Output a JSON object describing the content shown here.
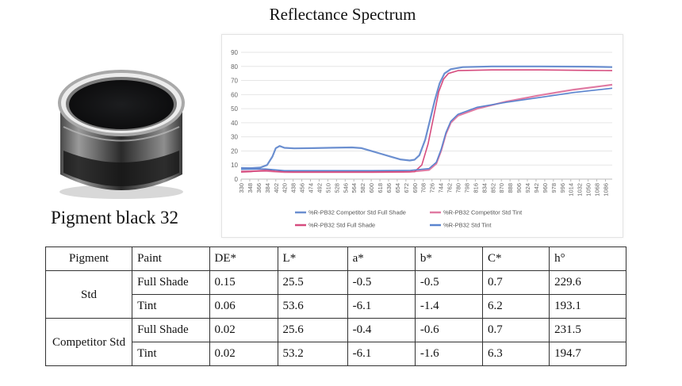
{
  "page_title": "Reflectance Spectrum",
  "image_caption": "Pigment black 32",
  "table": {
    "headers": [
      "Pigment",
      "Paint",
      "DE*",
      "L*",
      "a*",
      "b*",
      "C*",
      "h°"
    ],
    "groups": [
      {
        "pigment": "Std",
        "rows": [
          [
            "Full Shade",
            "0.15",
            "25.5",
            "-0.5",
            "-0.5",
            "0.7",
            "229.6"
          ],
          [
            "Tint",
            "0.06",
            "53.6",
            "-6.1",
            "-1.4",
            "6.2",
            "193.1"
          ]
        ]
      },
      {
        "pigment": "Competitor Std",
        "rows": [
          [
            "Full Shade",
            "0.02",
            "25.6",
            "-0.4",
            "-0.6",
            "0.7",
            "231.5"
          ],
          [
            "Tint",
            "0.02",
            "53.2",
            "-6.1",
            "-1.6",
            "6.3",
            "194.7"
          ]
        ]
      }
    ]
  },
  "chart_data": {
    "type": "line",
    "title": "Reflectance Spectrum",
    "xlabel": "",
    "ylabel": "",
    "ylim": [
      0,
      90
    ],
    "yticks": [
      0,
      10,
      20,
      30,
      40,
      50,
      60,
      70,
      80,
      90
    ],
    "xticks": [
      330,
      348,
      366,
      384,
      402,
      420,
      438,
      456,
      474,
      492,
      510,
      528,
      546,
      564,
      582,
      600,
      618,
      636,
      654,
      672,
      690,
      708,
      726,
      744,
      762,
      780,
      798,
      816,
      834,
      852,
      870,
      888,
      906,
      924,
      942,
      960,
      978,
      996,
      1014,
      1032,
      1050,
      1068,
      1086
    ],
    "xlim": [
      330,
      1100
    ],
    "grid": true,
    "legend_position": "bottom",
    "series": [
      {
        "name": "%R-PB32 Competitor Std Full Shade",
        "color": "#6b8fd0",
        "width": 2.2,
        "points": [
          [
            330,
            8
          ],
          [
            350,
            7.8
          ],
          [
            370,
            8.2
          ],
          [
            384,
            10
          ],
          [
            395,
            16
          ],
          [
            402,
            22
          ],
          [
            410,
            23.5
          ],
          [
            420,
            22.2
          ],
          [
            440,
            21.8
          ],
          [
            480,
            22
          ],
          [
            520,
            22.3
          ],
          [
            560,
            22.5
          ],
          [
            580,
            22
          ],
          [
            600,
            20
          ],
          [
            620,
            18
          ],
          [
            640,
            16
          ],
          [
            660,
            14
          ],
          [
            680,
            13.2
          ],
          [
            690,
            13.8
          ],
          [
            700,
            17
          ],
          [
            712,
            28
          ],
          [
            722,
            42
          ],
          [
            732,
            56
          ],
          [
            742,
            68
          ],
          [
            752,
            75
          ],
          [
            765,
            78
          ],
          [
            790,
            79.5
          ],
          [
            850,
            80
          ],
          [
            950,
            80
          ],
          [
            1050,
            79.8
          ],
          [
            1100,
            79.5
          ]
        ]
      },
      {
        "name": "%R-PB32 Competitor Std Tint",
        "color": "#e07aa2",
        "width": 2.2,
        "points": [
          [
            330,
            5.5
          ],
          [
            380,
            5.8
          ],
          [
            420,
            5
          ],
          [
            500,
            5
          ],
          [
            600,
            5
          ],
          [
            680,
            5.2
          ],
          [
            720,
            6.5
          ],
          [
            735,
            11
          ],
          [
            745,
            20
          ],
          [
            755,
            32
          ],
          [
            765,
            40
          ],
          [
            780,
            45
          ],
          [
            820,
            50
          ],
          [
            880,
            55
          ],
          [
            950,
            59.5
          ],
          [
            1020,
            63.5
          ],
          [
            1100,
            67
          ]
        ]
      },
      {
        "name": "%R-PB32 Std Full Shade",
        "color": "#d64c7e",
        "width": 1.6,
        "points": [
          [
            330,
            5
          ],
          [
            350,
            5.3
          ],
          [
            370,
            6
          ],
          [
            384,
            6.4
          ],
          [
            400,
            5.7
          ],
          [
            440,
            5
          ],
          [
            500,
            5
          ],
          [
            600,
            5
          ],
          [
            690,
            5.3
          ],
          [
            705,
            10
          ],
          [
            718,
            25
          ],
          [
            730,
            45
          ],
          [
            740,
            62
          ],
          [
            750,
            71
          ],
          [
            760,
            75
          ],
          [
            780,
            77
          ],
          [
            850,
            77.5
          ],
          [
            950,
            77.5
          ],
          [
            1050,
            77.2
          ],
          [
            1100,
            77
          ]
        ]
      },
      {
        "name": "%R-PB32 Std Tint",
        "color": "#5a84cf",
        "width": 1.6,
        "points": [
          [
            330,
            7
          ],
          [
            380,
            7.2
          ],
          [
            420,
            6
          ],
          [
            500,
            6
          ],
          [
            600,
            6
          ],
          [
            680,
            6.2
          ],
          [
            720,
            7.5
          ],
          [
            735,
            12
          ],
          [
            745,
            21
          ],
          [
            755,
            33
          ],
          [
            765,
            41
          ],
          [
            780,
            46
          ],
          [
            820,
            51
          ],
          [
            880,
            54.5
          ],
          [
            950,
            58
          ],
          [
            1020,
            61.5
          ],
          [
            1100,
            64.5
          ]
        ]
      }
    ]
  }
}
